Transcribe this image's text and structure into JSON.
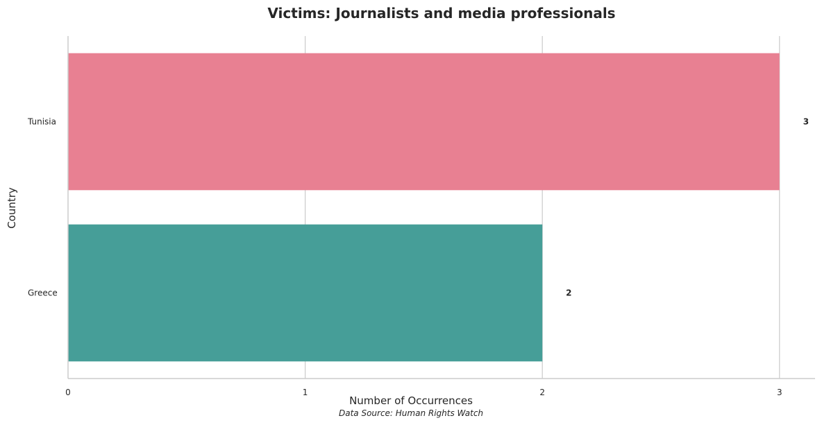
{
  "chart_data": {
    "type": "bar",
    "orientation": "horizontal",
    "title": "Victims: Journalists and media professionals",
    "xlabel": "Number of Occurrences",
    "ylabel": "Country",
    "categories": [
      "Tunisia",
      "Greece"
    ],
    "values": [
      3,
      2
    ],
    "data_labels": [
      "3",
      "2"
    ],
    "colors": [
      "#e88092",
      "#469e98"
    ],
    "xlim": [
      0,
      3.15
    ],
    "xticks": [
      0,
      1,
      2,
      3
    ],
    "xtick_labels": [
      "0",
      "1",
      "2",
      "3"
    ],
    "grid": true,
    "source_note": "Data Source: Human Rights Watch"
  }
}
